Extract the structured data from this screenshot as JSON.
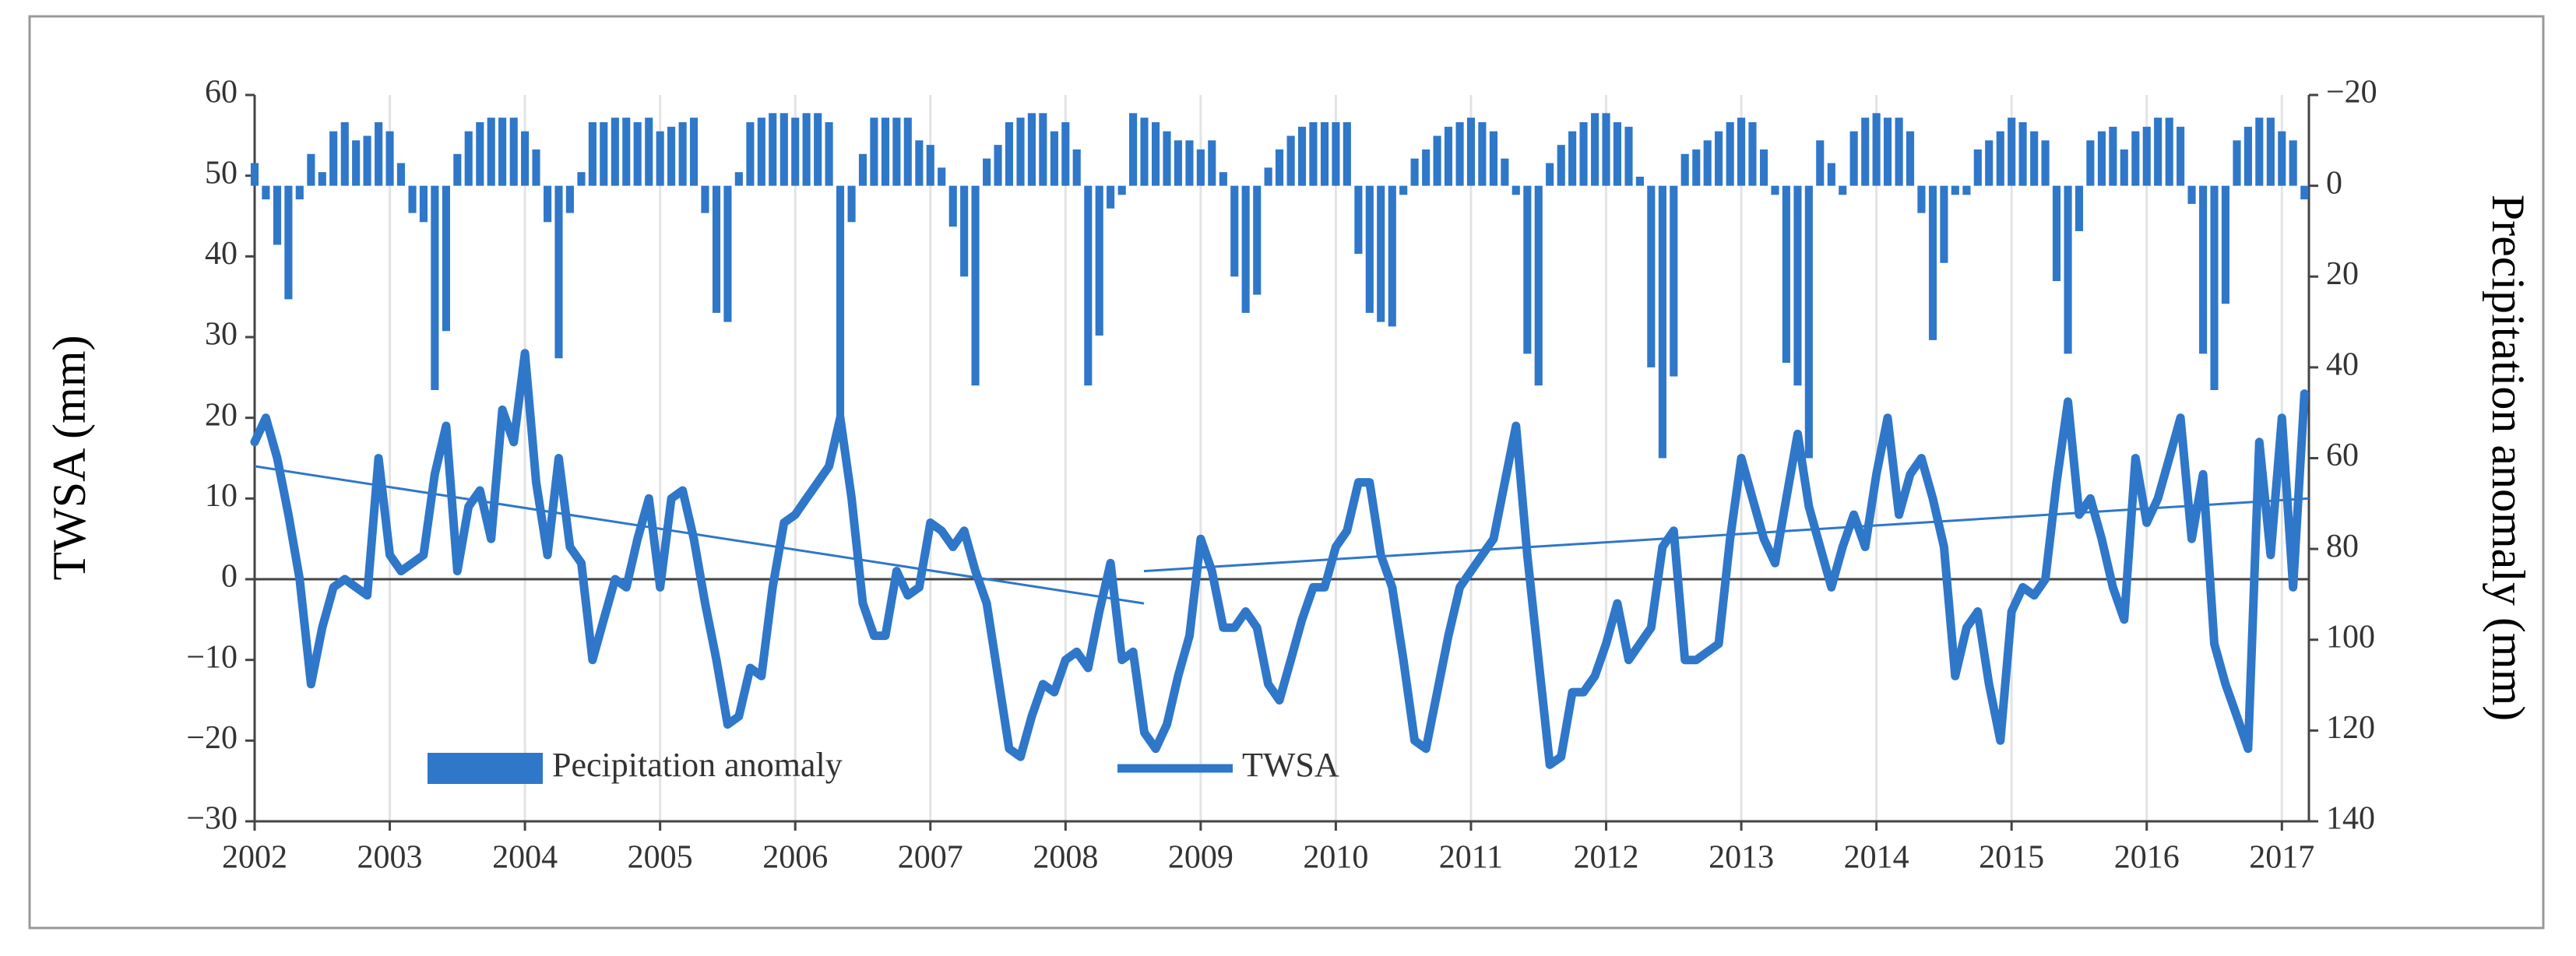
{
  "chart_data": {
    "type": "bar",
    "x": [
      2002,
      2002.083,
      2002.167,
      2002.25,
      2002.333,
      2002.417,
      2002.5,
      2002.583,
      2002.667,
      2002.75,
      2002.833,
      2002.917,
      2003,
      2003.083,
      2003.167,
      2003.25,
      2003.333,
      2003.417,
      2003.5,
      2003.583,
      2003.667,
      2003.75,
      2003.833,
      2003.917,
      2004,
      2004.083,
      2004.167,
      2004.25,
      2004.333,
      2004.417,
      2004.5,
      2004.583,
      2004.667,
      2004.75,
      2004.833,
      2004.917,
      2005,
      2005.083,
      2005.167,
      2005.25,
      2005.333,
      2005.417,
      2005.5,
      2005.583,
      2005.667,
      2005.75,
      2005.833,
      2005.917,
      2006,
      2006.083,
      2006.167,
      2006.25,
      2006.333,
      2006.417,
      2006.5,
      2006.583,
      2006.667,
      2006.75,
      2006.833,
      2006.917,
      2007,
      2007.083,
      2007.167,
      2007.25,
      2007.333,
      2007.417,
      2007.5,
      2007.583,
      2007.667,
      2007.75,
      2007.833,
      2007.917,
      2008,
      2008.083,
      2008.167,
      2008.25,
      2008.333,
      2008.417,
      2008.5,
      2008.583,
      2008.667,
      2008.75,
      2008.833,
      2008.917,
      2009,
      2009.083,
      2009.167,
      2009.25,
      2009.333,
      2009.417,
      2009.5,
      2009.583,
      2009.667,
      2009.75,
      2009.833,
      2009.917,
      2010,
      2010.083,
      2010.167,
      2010.25,
      2010.333,
      2010.417,
      2010.5,
      2010.583,
      2010.667,
      2010.75,
      2010.833,
      2010.917,
      2011,
      2011.083,
      2011.167,
      2011.25,
      2011.333,
      2011.417,
      2011.5,
      2011.583,
      2011.667,
      2011.75,
      2011.833,
      2011.917,
      2012,
      2012.083,
      2012.167,
      2012.25,
      2012.333,
      2012.417,
      2012.5,
      2012.583,
      2012.667,
      2012.75,
      2012.833,
      2012.917,
      2013,
      2013.083,
      2013.167,
      2013.25,
      2013.333,
      2013.417,
      2013.5,
      2013.583,
      2013.667,
      2013.75,
      2013.833,
      2013.917,
      2014,
      2014.083,
      2014.167,
      2014.25,
      2014.333,
      2014.417,
      2014.5,
      2014.583,
      2014.667,
      2014.75,
      2014.833,
      2014.917,
      2015,
      2015.083,
      2015.167,
      2015.25,
      2015.333,
      2015.417,
      2015.5,
      2015.583,
      2015.667,
      2015.75,
      2015.833,
      2015.917,
      2016,
      2016.083,
      2016.167,
      2016.25,
      2016.333,
      2016.417,
      2016.5,
      2016.583,
      2016.667,
      2016.75,
      2016.833,
      2016.917,
      2017,
      2017.083,
      2017.167
    ],
    "series": [
      {
        "name": "Pecipitation anomaly",
        "type": "bar",
        "axis": "y2",
        "color": "#2f77c9",
        "values": [
          -5,
          3,
          13,
          25,
          3,
          -7,
          -3,
          -12,
          -14,
          -10,
          -11,
          -14,
          -12,
          -5,
          6,
          8,
          45,
          32,
          -7,
          -12,
          -14,
          -15,
          -15,
          -15,
          -12,
          -8,
          8,
          38,
          6,
          -3,
          -14,
          -14,
          -15,
          -15,
          -14,
          -15,
          -12,
          -13,
          -14,
          -15,
          6,
          28,
          30,
          -3,
          -14,
          -15,
          -16,
          -16,
          -15,
          -16,
          -16,
          -14,
          55,
          8,
          -7,
          -15,
          -15,
          -15,
          -15,
          -10,
          -9,
          -4,
          9,
          20,
          44,
          -6,
          -9,
          -14,
          -15,
          -16,
          -16,
          -12,
          -14,
          -8,
          44,
          33,
          5,
          2,
          -16,
          -15,
          -14,
          -12,
          -10,
          -10,
          -8,
          -10,
          -3,
          20,
          28,
          24,
          -4,
          -8,
          -11,
          -13,
          -14,
          -14,
          -14,
          -14,
          15,
          28,
          30,
          31,
          2,
          -6,
          -8,
          -11,
          -13,
          -14,
          -15,
          -14,
          -12,
          -6,
          2,
          37,
          44,
          -5,
          -9,
          -12,
          -14,
          -16,
          -16,
          -14,
          -13,
          -2,
          40,
          60,
          42,
          -7,
          -8,
          -10,
          -12,
          -14,
          -15,
          -14,
          -8,
          2,
          39,
          44,
          60,
          -10,
          -5,
          2,
          -12,
          -15,
          -16,
          -15,
          -15,
          -12,
          6,
          34,
          17,
          2,
          2,
          -8,
          -10,
          -12,
          -15,
          -14,
          -12,
          -10,
          21,
          37,
          10,
          -10,
          -12,
          -13,
          -8,
          -12,
          -13,
          -15,
          -15,
          -13,
          4,
          37,
          45,
          26,
          -10,
          -13,
          -15,
          -15,
          -12,
          -10,
          3
        ]
      },
      {
        "name": "TWSA",
        "type": "line",
        "color": "#2f77c9",
        "values": [
          17,
          20,
          15,
          8,
          0,
          -13,
          -6,
          -1,
          0,
          -1,
          -2,
          15,
          3,
          1,
          2,
          3,
          13,
          19,
          1,
          9,
          11,
          5,
          21,
          17,
          28,
          12,
          3,
          15,
          4,
          2,
          -10,
          -5,
          0,
          -1,
          5,
          10,
          -1,
          10,
          11,
          5,
          -3,
          -10,
          -18,
          -17,
          -11,
          -12,
          -1,
          7,
          8,
          10,
          12,
          14,
          20,
          10,
          -3,
          -7,
          -7,
          1,
          -2,
          -1,
          7,
          6,
          4,
          6,
          1,
          -3,
          -12,
          -21,
          -22,
          -17,
          -13,
          -14,
          -10,
          -9,
          -11,
          -4,
          2,
          -10,
          -9,
          -19,
          -21,
          -18,
          -12,
          -7,
          5,
          1,
          -6,
          -6,
          -4,
          -6,
          -13,
          -15,
          -10,
          -5,
          -1,
          -1,
          4,
          6,
          12,
          12,
          3,
          -1,
          -10,
          -20,
          -21,
          -14,
          -7,
          -1,
          1,
          3,
          5,
          12,
          19,
          3,
          -10,
          -23,
          -22,
          -14,
          -14,
          -12,
          -8,
          -3,
          -10,
          -8,
          -6,
          4,
          6,
          -10,
          -10,
          -9,
          -8,
          5,
          15,
          10,
          5,
          2,
          10,
          18,
          9,
          4,
          -1,
          4,
          8,
          4,
          13,
          20,
          8,
          13,
          15,
          10,
          4,
          -12,
          -6,
          -4,
          -13,
          -20,
          -4,
          -1,
          -2,
          0,
          12,
          22,
          8,
          10,
          5,
          -1,
          -5,
          15,
          7,
          10,
          15,
          20,
          5,
          13,
          -8,
          -13,
          -17,
          -21,
          17,
          3,
          20,
          -1,
          23
        ]
      }
    ],
    "trend_lines": [
      {
        "color": "#2f77c9",
        "x": [
          2002,
          2008.58
        ],
        "values": [
          14,
          -3
        ]
      },
      {
        "color": "#2f77c9",
        "x": [
          2008.58,
          2017.2
        ],
        "values": [
          1,
          10
        ]
      }
    ],
    "xlim": [
      2002,
      2017.2
    ],
    "xticks": [
      2002,
      2003,
      2004,
      2005,
      2006,
      2007,
      2008,
      2009,
      2010,
      2011,
      2012,
      2013,
      2014,
      2015,
      2016,
      2017
    ],
    "ylim": [
      -30,
      60
    ],
    "yticks": [
      {
        "value": -30,
        "label": "−30"
      },
      {
        "value": -20,
        "label": "−20"
      },
      {
        "value": -10,
        "label": "−10"
      },
      0,
      10,
      20,
      30,
      40,
      50,
      60
    ],
    "y2lim": [
      140,
      -20
    ],
    "y2ticks": [
      {
        "value": -20,
        "label": "−20"
      },
      0,
      20,
      40,
      60,
      80,
      100,
      120,
      140
    ],
    "ylabel": "TWSA (mm)",
    "y2label": "Precipitation anomaly (mm)",
    "grid": "x",
    "legend": "lower left"
  }
}
